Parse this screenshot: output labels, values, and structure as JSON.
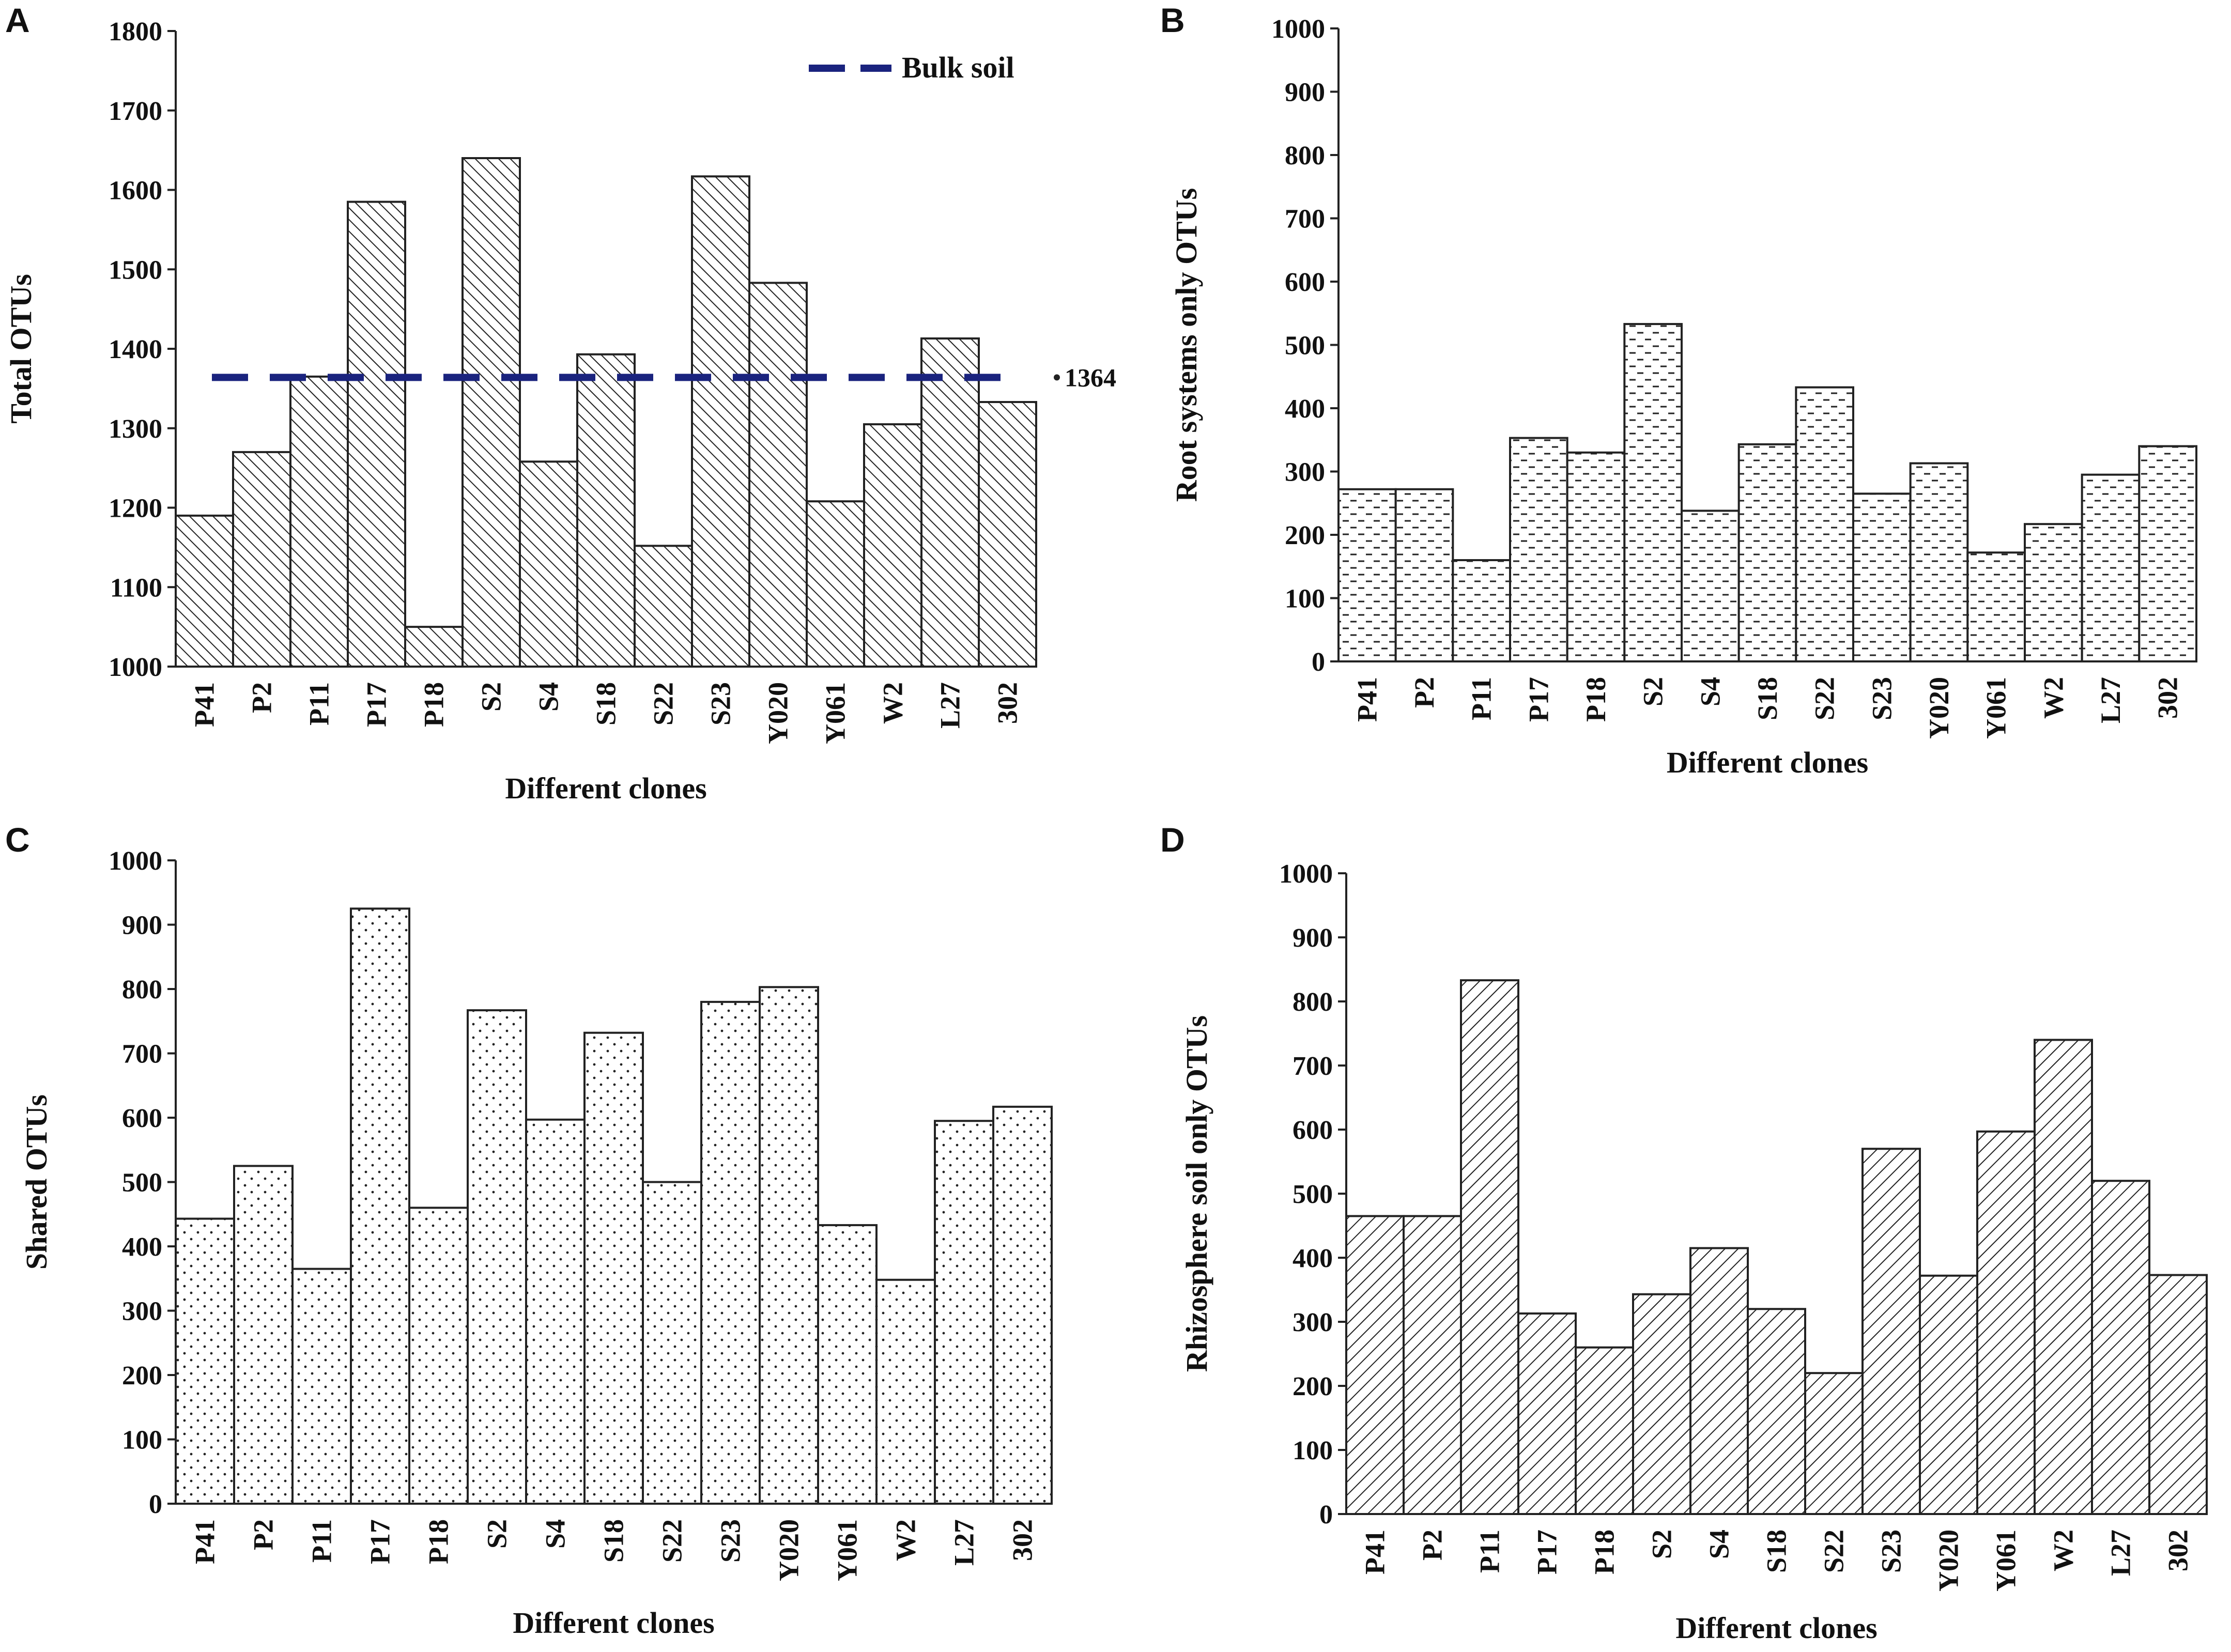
{
  "chart_data": [
    {
      "panel": "A",
      "type": "bar",
      "pattern": "diag-right",
      "categories": [
        "P41",
        "P2",
        "P11",
        "P17",
        "P18",
        "S2",
        "S4",
        "S18",
        "S22",
        "S23",
        "Y020",
        "Y061",
        "W2",
        "L27",
        "302"
      ],
      "values": [
        1190,
        1270,
        1365,
        1585,
        1050,
        1640,
        1258,
        1393,
        1152,
        1617,
        1483,
        1208,
        1305,
        1413,
        1333
      ],
      "ylim": [
        1000,
        1800
      ],
      "yticks": [
        1000,
        1100,
        1200,
        1300,
        1400,
        1500,
        1600,
        1700,
        1800
      ],
      "xlabel": "Different clones",
      "ylabel": "Total OTUs",
      "reference_line": {
        "value": 1364,
        "label": "1364",
        "legend": "Bulk soil",
        "color": "#1a237e"
      }
    },
    {
      "panel": "B",
      "type": "bar",
      "pattern": "dash",
      "categories": [
        "P41",
        "P2",
        "P11",
        "P17",
        "P18",
        "S2",
        "S4",
        "S18",
        "S22",
        "S23",
        "Y020",
        "Y061",
        "W2",
        "L27",
        "302"
      ],
      "values": [
        272,
        272,
        160,
        353,
        330,
        533,
        238,
        343,
        433,
        265,
        313,
        172,
        217,
        295,
        340
      ],
      "ylim": [
        0,
        1000
      ],
      "yticks": [
        0,
        100,
        200,
        300,
        400,
        500,
        600,
        700,
        800,
        900,
        1000
      ],
      "xlabel": "Different clones",
      "ylabel": "Root systems only OTUs"
    },
    {
      "panel": "C",
      "type": "bar",
      "pattern": "dots",
      "categories": [
        "P41",
        "P2",
        "P11",
        "P17",
        "P18",
        "S2",
        "S4",
        "S18",
        "S22",
        "S23",
        "Y020",
        "Y061",
        "W2",
        "L27",
        "302"
      ],
      "values": [
        443,
        525,
        365,
        925,
        460,
        767,
        597,
        732,
        500,
        780,
        803,
        433,
        348,
        595,
        617
      ],
      "ylim": [
        0,
        1000
      ],
      "yticks": [
        0,
        100,
        200,
        300,
        400,
        500,
        600,
        700,
        800,
        900,
        1000
      ],
      "xlabel": "Different clones",
      "ylabel": "Shared OTUs"
    },
    {
      "panel": "D",
      "type": "bar",
      "pattern": "diag-left",
      "categories": [
        "P41",
        "P2",
        "P11",
        "P17",
        "P18",
        "S2",
        "S4",
        "S18",
        "S22",
        "S23",
        "Y020",
        "Y061",
        "W2",
        "L27",
        "302"
      ],
      "values": [
        465,
        465,
        833,
        313,
        260,
        343,
        415,
        320,
        220,
        570,
        372,
        597,
        740,
        520,
        373
      ],
      "ylim": [
        0,
        1000
      ],
      "yticks": [
        0,
        100,
        200,
        300,
        400,
        500,
        600,
        700,
        800,
        900,
        1000
      ],
      "xlabel": "Different clones",
      "ylabel": "Rhizosphere soil only OTUs"
    }
  ]
}
